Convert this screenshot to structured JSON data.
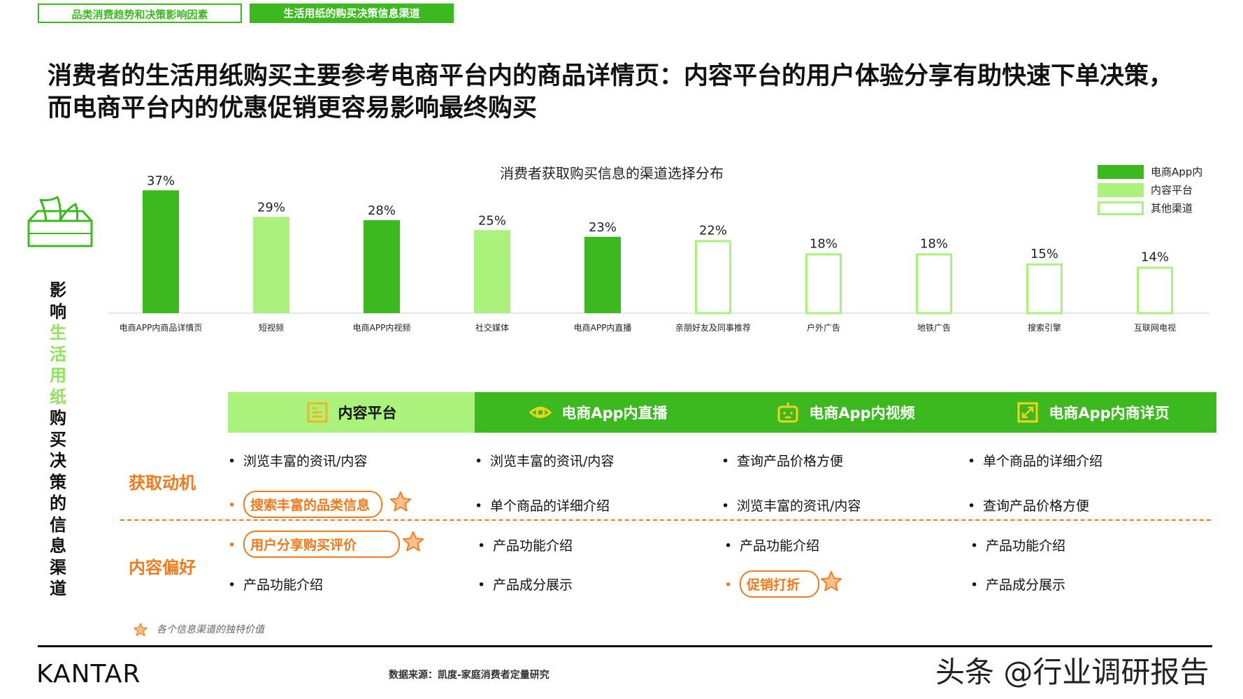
{
  "tabs": {
    "tab1": "品类消费趋势和决策影响因素",
    "tab2": "生活用纸的购买决策信息渠道"
  },
  "headline": "消费者的生活用纸购买主要参考电商平台内的商品详情页：内容平台的用户体验分享有助快速下单决策，而电商平台内的优惠促销更容易影响最终购买",
  "colors": {
    "dark_green": "#3cb91e",
    "light_green": "#aaf27c",
    "orange": "#f27a1a"
  },
  "chart_data": {
    "type": "bar",
    "title": "消费者获取购买信息的渠道选择分布",
    "categories": [
      "电商APP内商品详情页",
      "短视频",
      "电商APP内视频",
      "社交媒体",
      "电商APP内直播",
      "亲朋好友及同事推荐",
      "户外广告",
      "地铁广告",
      "搜索引擎",
      "互联网电视"
    ],
    "values": [
      37,
      29,
      28,
      25,
      23,
      22,
      18,
      18,
      15,
      14
    ],
    "value_labels": [
      "37%",
      "29%",
      "28%",
      "25%",
      "23%",
      "22%",
      "18%",
      "18%",
      "15%",
      "14%"
    ],
    "groups": [
      "ecommerce",
      "content",
      "ecommerce",
      "content",
      "ecommerce",
      "other",
      "other",
      "other",
      "other",
      "other"
    ],
    "unit": "%",
    "ylim": [
      0,
      40
    ],
    "grid": false,
    "legend_position": "top-right",
    "legend": [
      {
        "key": "ecommerce",
        "name": "电商App内",
        "color": "#3cb91e",
        "style": "filled"
      },
      {
        "key": "content",
        "name": "内容平台",
        "color": "#aaf27c",
        "style": "filled"
      },
      {
        "key": "other",
        "name": "其他渠道",
        "color": "#aaf27c",
        "style": "outline"
      }
    ]
  },
  "side_title": {
    "part1": [
      "影",
      "响"
    ],
    "part2": [
      "生",
      "活",
      "用",
      "纸"
    ],
    "part3": [
      "购",
      "买",
      "决",
      "策",
      "的",
      "信",
      "息",
      "渠",
      "道"
    ]
  },
  "table": {
    "columns": [
      {
        "label": "内容平台",
        "icon": "article-icon"
      },
      {
        "label": "电商App内直播",
        "icon": "eye-icon"
      },
      {
        "label": "电商App内视频",
        "icon": "video-face-icon"
      },
      {
        "label": "电商App内商详页",
        "icon": "expand-icon"
      }
    ],
    "row_labels": [
      "获取动机",
      "内容偏好"
    ],
    "motivation": [
      [
        "浏览丰富的资讯/内容",
        "搜索丰富的品类信息"
      ],
      [
        "浏览丰富的资讯/内容",
        "单个商品的详细介绍"
      ],
      [
        "查询产品价格方便",
        "浏览丰富的资讯/内容"
      ],
      [
        "单个商品的详细介绍",
        "查询产品价格方便"
      ]
    ],
    "preference": [
      [
        "用户分享购买评价",
        "产品功能介绍"
      ],
      [
        "产品功能介绍",
        "产品成分展示"
      ],
      [
        "产品功能介绍",
        "促销打折"
      ],
      [
        "产品功能介绍",
        "产品成分展示"
      ]
    ]
  },
  "note": "各个信息渠道的独特价值",
  "footer": {
    "brand": "KANTAR",
    "source": "数据来源：凯度-家庭消费者定量研究",
    "watermark": "头条 @行业调研报告"
  }
}
